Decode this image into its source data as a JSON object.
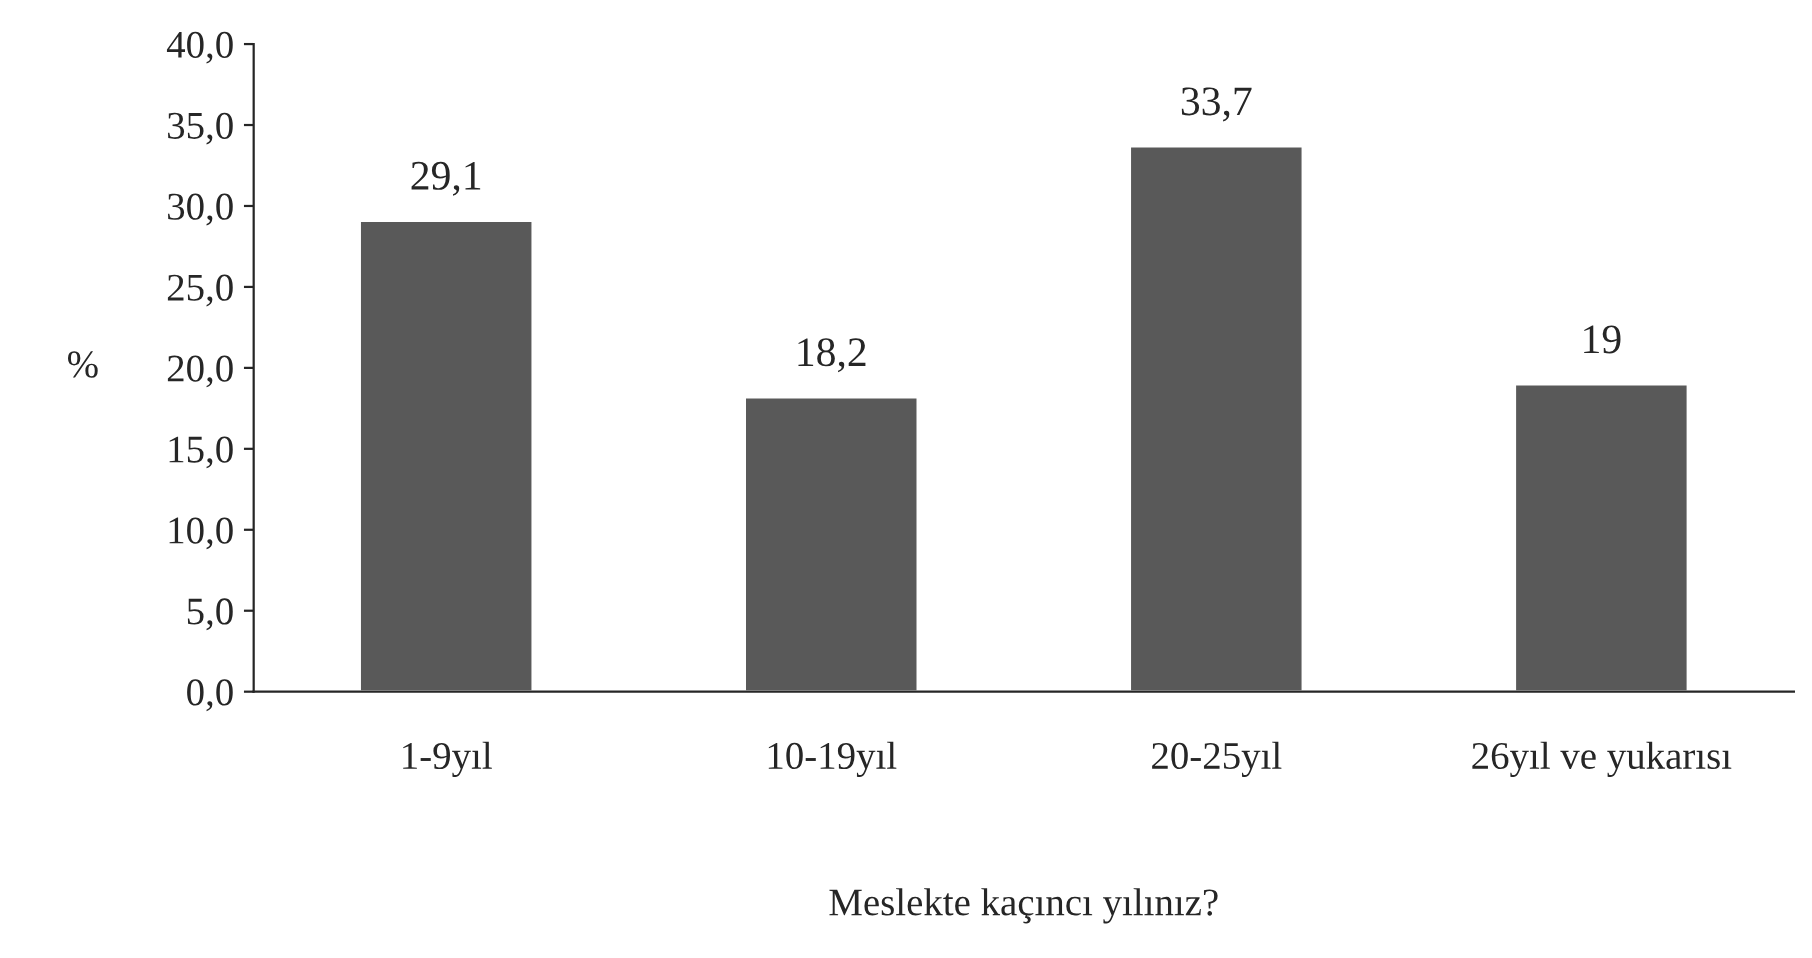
{
  "chart_data": {
    "type": "bar",
    "xlabel": "Meslekte kaçıncı yılınız?",
    "ylabel": "%",
    "categories": [
      "1-9yıl",
      "10-19yıl",
      "20-25yıl",
      "26yıl ve yukarısı"
    ],
    "values": [
      29.1,
      18.2,
      33.7,
      19
    ],
    "value_labels": [
      "29,1",
      "18,2",
      "33,7",
      "19"
    ],
    "color": "#595959",
    "ylim": [
      0,
      40
    ],
    "yticks": [
      {
        "value": 0,
        "label": "0,0"
      },
      {
        "value": 5,
        "label": "5,0"
      },
      {
        "value": 10,
        "label": "10,0"
      },
      {
        "value": 15,
        "label": "15,0"
      },
      {
        "value": 20,
        "label": "20,0"
      },
      {
        "value": 25,
        "label": "25,0"
      },
      {
        "value": 30,
        "label": "30,0"
      },
      {
        "value": 35,
        "label": "35,0"
      },
      {
        "value": 40,
        "label": "40,0"
      }
    ],
    "grid": false,
    "legend": false
  }
}
